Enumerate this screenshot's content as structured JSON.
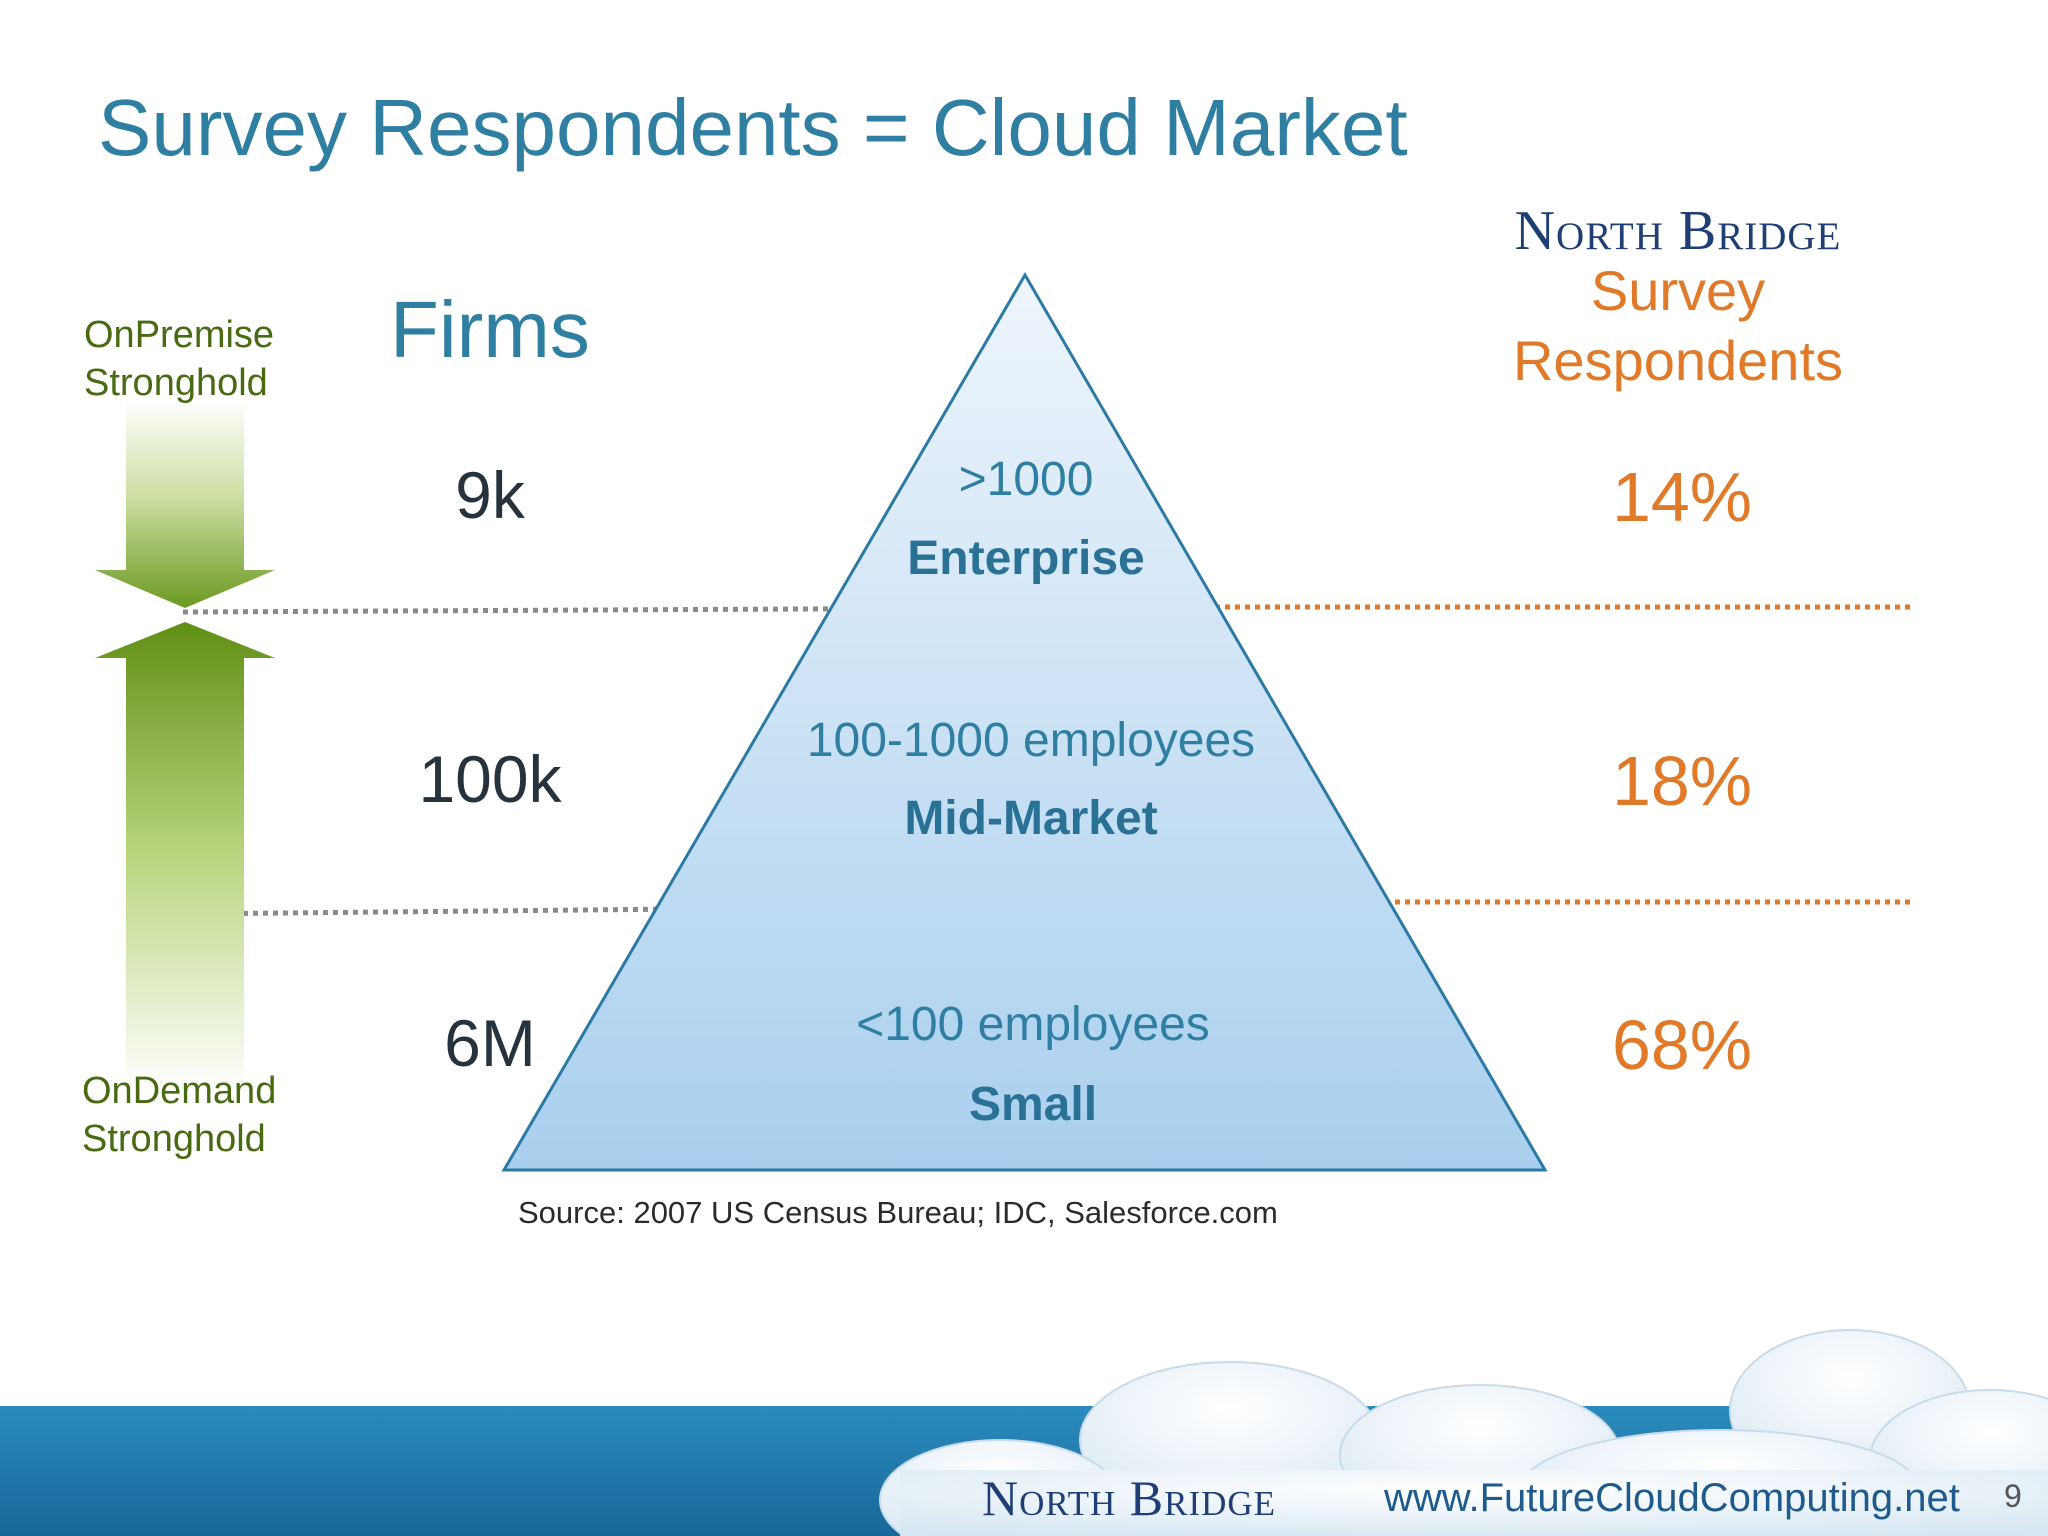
{
  "title": "Survey Respondents = Cloud Market",
  "brand_top": "North Bridge",
  "respondents_header": [
    "Survey",
    "Respondents"
  ],
  "firms_heading": "Firms",
  "side_labels": {
    "top": "OnPremise Stronghold",
    "bottom": "OnDemand Stronghold"
  },
  "tiers": [
    {
      "range": ">1000",
      "name": "Enterprise",
      "firms": "9k",
      "respondents": "14%"
    },
    {
      "range": "100-1000 employees",
      "name": "Mid-Market",
      "firms": "100k",
      "respondents": "18%"
    },
    {
      "range": "<100 employees",
      "name": "Small",
      "firms": "6M",
      "respondents": "68%"
    }
  ],
  "source": "Source: 2007 US Census Bureau; IDC, Salesforce.com",
  "footer": {
    "brand": "North Bridge",
    "url": "www.FutureCloudComputing.net",
    "page_number": "9"
  },
  "colors": {
    "title_blue": "#2f7fa3",
    "accent_orange": "#e07a28",
    "brand_navy": "#1f3f74",
    "arrow_green": "#6a9a1e",
    "footer_band": "#1f7fb0"
  }
}
